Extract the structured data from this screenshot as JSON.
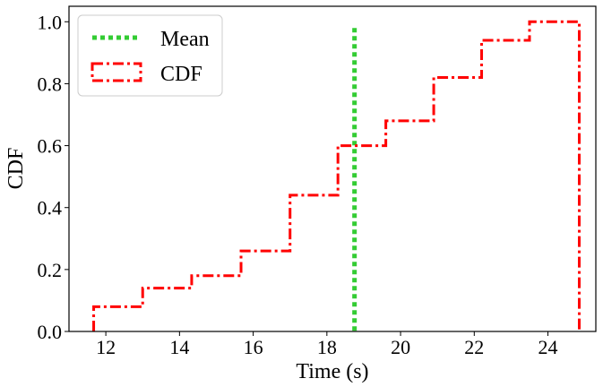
{
  "chart_data": {
    "type": "line",
    "title": "",
    "xlabel": "Time (s)",
    "ylabel": "CDF",
    "xlim": [
      11.0,
      25.3
    ],
    "ylim": [
      0.0,
      1.05
    ],
    "xticks": [
      12,
      14,
      16,
      18,
      20,
      22,
      24
    ],
    "yticks": [
      0.0,
      0.2,
      0.4,
      0.6,
      0.8,
      1.0
    ],
    "xtick_labels": [
      "12",
      "14",
      "16",
      "18",
      "20",
      "22",
      "24"
    ],
    "ytick_labels": [
      "0.0",
      "0.2",
      "0.4",
      "0.6",
      "0.8",
      "1.0"
    ],
    "grid": false,
    "legend_position": "top-left",
    "series": [
      {
        "name": "CDF",
        "style": "dash-dot step",
        "color": "#ff0000",
        "x": [
          11.67,
          13.0,
          14.33,
          15.67,
          17.0,
          18.3,
          19.6,
          20.9,
          22.2,
          23.5,
          24.85
        ],
        "y": [
          0.08,
          0.14,
          0.18,
          0.26,
          0.44,
          0.6,
          0.68,
          0.82,
          0.94,
          1.0,
          1.0
        ]
      },
      {
        "name": "Mean",
        "style": "dotted vertical line",
        "color": "#33cc33",
        "x": 18.75
      }
    ],
    "legend": [
      {
        "label": "Mean",
        "color": "#33cc33",
        "style": "dotted"
      },
      {
        "label": "CDF",
        "color": "#ff0000",
        "style": "dash-dot"
      }
    ]
  }
}
